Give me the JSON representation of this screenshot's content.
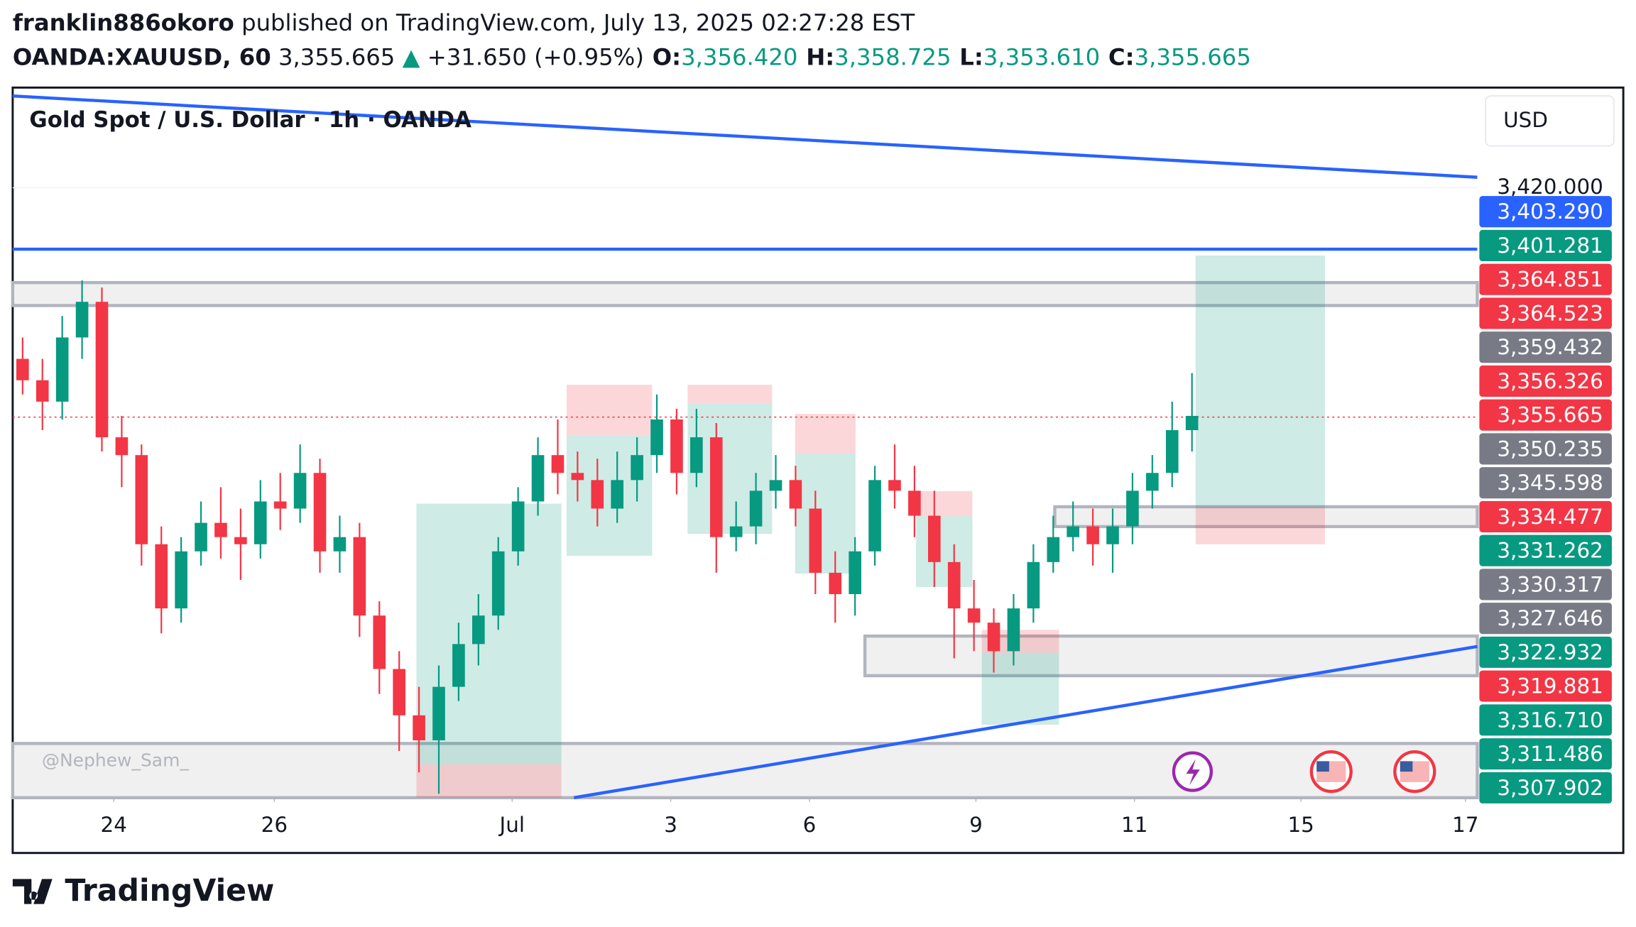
{
  "header": {
    "author": "franklin886okoro",
    "published": "published on TradingView.com, July 13, 2025 02:27:28 EST",
    "symbol": "OANDA:XAUUSD, 60",
    "last": "3,355.665",
    "arrow": "▲",
    "change": "+31.650 (+0.95%)",
    "ohlc": [
      {
        "key": "O:",
        "value": "3,356.420"
      },
      {
        "key": "H:",
        "value": "3,358.725"
      },
      {
        "key": "L:",
        "value": "3,353.610"
      },
      {
        "key": "C:",
        "value": "3,355.665"
      }
    ]
  },
  "chart_data": {
    "type": "candlestick",
    "title": "Gold Spot / U.S. Dollar · 1h · OANDA",
    "currency": "USD",
    "watermark": "@Nephew_Sam_",
    "up_color": "#089981",
    "down_color": "#f23645",
    "open": [
      3372,
      3366,
      3360,
      3378,
      3388,
      3350,
      3345,
      3320,
      3302,
      3318,
      3326,
      3322,
      3320,
      3332,
      3330,
      3340,
      3318,
      3322,
      3300,
      3285,
      3272,
      3265,
      3280,
      3292,
      3300,
      3318,
      3332,
      3345,
      3340,
      3338,
      3330,
      3338,
      3345,
      3355,
      3340,
      3350,
      3322,
      3325,
      3335,
      3338,
      3330,
      3312,
      3306,
      3318,
      3338,
      3335,
      3328,
      3315,
      3302,
      3298,
      3290,
      3302,
      3315,
      3322,
      3325,
      3320,
      3325,
      3335,
      3340,
      3352
    ],
    "high": [
      3378,
      3372,
      3384,
      3394,
      3392,
      3356,
      3348,
      3325,
      3322,
      3332,
      3336,
      3330,
      3338,
      3340,
      3348,
      3344,
      3328,
      3326,
      3304,
      3290,
      3280,
      3286,
      3298,
      3306,
      3322,
      3336,
      3350,
      3355,
      3346,
      3344,
      3346,
      3350,
      3362,
      3358,
      3358,
      3354,
      3332,
      3340,
      3345,
      3342,
      3335,
      3318,
      3322,
      3342,
      3348,
      3342,
      3335,
      3320,
      3310,
      3302,
      3306,
      3320,
      3328,
      3332,
      3330,
      3330,
      3340,
      3345,
      3360,
      3368
    ],
    "low": [
      3362,
      3352,
      3355,
      3372,
      3346,
      3336,
      3314,
      3295,
      3298,
      3314,
      3316,
      3310,
      3316,
      3324,
      3326,
      3312,
      3312,
      3294,
      3278,
      3262,
      3256,
      3250,
      3276,
      3286,
      3296,
      3314,
      3328,
      3334,
      3332,
      3325,
      3326,
      3332,
      3340,
      3334,
      3336,
      3312,
      3318,
      3320,
      3330,
      3325,
      3306,
      3298,
      3300,
      3314,
      3330,
      3322,
      3308,
      3288,
      3290,
      3284,
      3286,
      3298,
      3312,
      3318,
      3314,
      3312,
      3320,
      3330,
      3336,
      3346
    ],
    "close": [
      3366,
      3360,
      3378,
      3388,
      3350,
      3345,
      3320,
      3302,
      3318,
      3326,
      3322,
      3320,
      3332,
      3330,
      3340,
      3318,
      3322,
      3300,
      3285,
      3272,
      3265,
      3280,
      3292,
      3300,
      3318,
      3332,
      3345,
      3340,
      3338,
      3330,
      3338,
      3345,
      3355,
      3340,
      3350,
      3322,
      3325,
      3335,
      3338,
      3330,
      3312,
      3306,
      3318,
      3338,
      3335,
      3328,
      3315,
      3302,
      3298,
      3290,
      3302,
      3315,
      3322,
      3325,
      3320,
      3325,
      3335,
      3340,
      3352,
      3356
    ],
    "xlim": [
      -0.5,
      73.4
    ],
    "xticks": [
      {
        "value": 4.6,
        "label": "24"
      },
      {
        "value": 12.7,
        "label": "26"
      },
      {
        "value": 24.7,
        "label": "Jul"
      },
      {
        "value": 32.7,
        "label": "3"
      },
      {
        "value": 39.7,
        "label": "6"
      },
      {
        "value": 48.1,
        "label": "9"
      },
      {
        "value": 56.1,
        "label": "11"
      },
      {
        "value": 64.5,
        "label": "15"
      },
      {
        "value": 72.8,
        "label": "17"
      }
    ],
    "ylim": [
      3248.9,
      3447.8
    ],
    "yticks": [
      {
        "value": 3420,
        "label": "3,420.000"
      }
    ],
    "price_labels": [
      {
        "value": 3403.29,
        "label": "3,403.290",
        "color": "#2962ff"
      },
      {
        "value": 3401.281,
        "label": "3,401.281",
        "color": "#089981"
      },
      {
        "value": 3364.851,
        "label": "3,364.851",
        "color": "#f23645"
      },
      {
        "value": 3364.523,
        "label": "3,364.523",
        "color": "#f23645"
      },
      {
        "value": 3359.432,
        "label": "3,359.432",
        "color": "#787b86"
      },
      {
        "value": 3356.326,
        "label": "3,356.326",
        "color": "#f23645"
      },
      {
        "value": 3355.665,
        "label": "3,355.665",
        "color": "#f23645"
      },
      {
        "value": 3350.235,
        "label": "3,350.235",
        "color": "#787b86"
      },
      {
        "value": 3345.598,
        "label": "3,345.598",
        "color": "#787b86"
      },
      {
        "value": 3334.477,
        "label": "3,334.477",
        "color": "#f23645"
      },
      {
        "value": 3331.262,
        "label": "3,331.262",
        "color": "#089981"
      },
      {
        "value": 3330.317,
        "label": "3,330.317",
        "color": "#787b86"
      },
      {
        "value": 3327.646,
        "label": "3,327.646",
        "color": "#787b86"
      },
      {
        "value": 3322.932,
        "label": "3,322.932",
        "color": "#089981"
      },
      {
        "value": 3319.881,
        "label": "3,319.881",
        "color": "#f23645"
      },
      {
        "value": 3316.71,
        "label": "3,316.710",
        "color": "#089981"
      },
      {
        "value": 3311.486,
        "label": "3,311.486",
        "color": "#089981"
      },
      {
        "value": 3307.902,
        "label": "3,307.902",
        "color": "#089981"
      }
    ]
  },
  "footer": {
    "brand": "TradingView"
  }
}
